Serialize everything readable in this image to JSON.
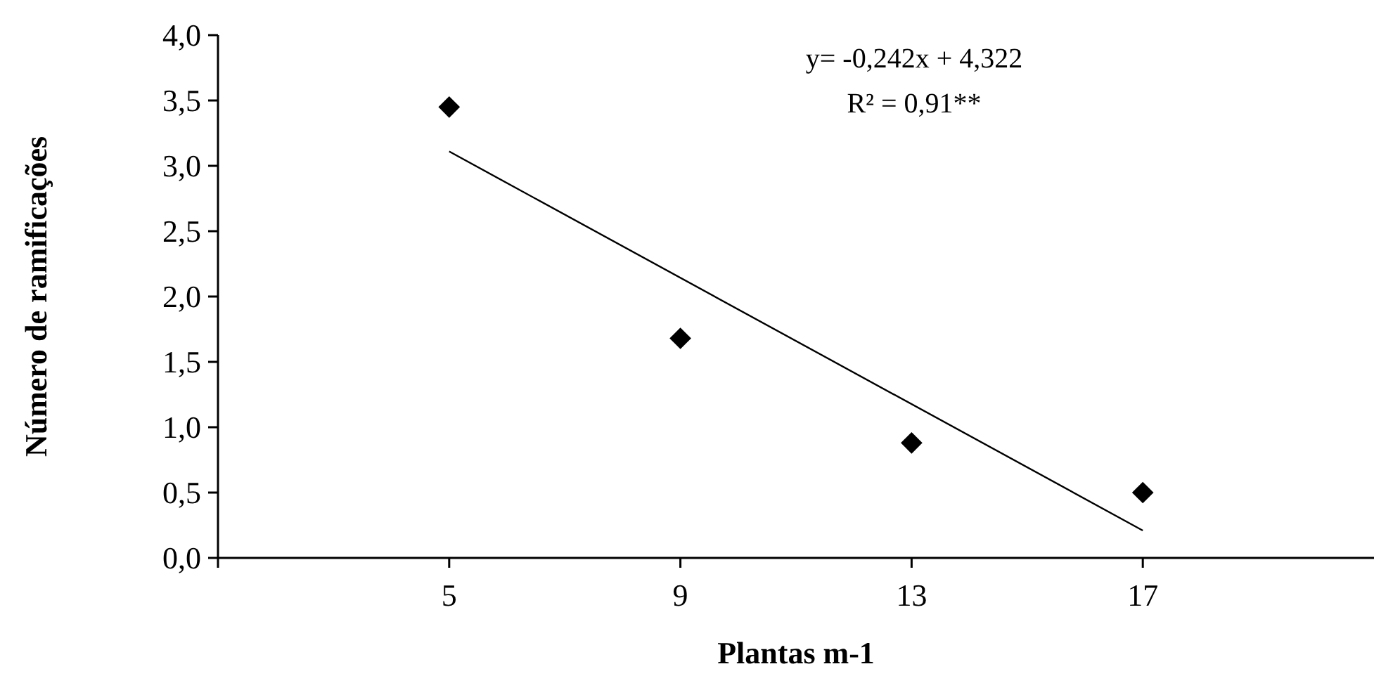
{
  "chart_data": {
    "type": "scatter",
    "xlabel": "Plantas m-1",
    "ylabel": "Número de ramificações",
    "series": [
      {
        "color": "#000000",
        "marker": "diamond",
        "x": [
          5,
          9,
          13,
          17
        ],
        "values": [
          3.45,
          1.68,
          0.88,
          0.5
        ]
      },
      {
        "type": "line",
        "color": "#000000",
        "marker": "none",
        "line_style": "solid",
        "x": [
          5,
          17
        ],
        "values": [
          3.11,
          0.21
        ]
      }
    ],
    "annotations": [
      "y= -0,242x + 4,322",
      "R² = 0,91**"
    ],
    "xlim": [
      1,
      21
    ],
    "xticks": [
      {
        "value": 1,
        "label": null
      },
      5,
      9,
      13,
      17
    ],
    "ylim": [
      0,
      4
    ],
    "yticks": [
      {
        "value": 0,
        "label": "0,0"
      },
      {
        "value": 0.5,
        "label": "0,5"
      },
      {
        "value": 1,
        "label": "1,0"
      },
      {
        "value": 1.5,
        "label": "1,5"
      },
      {
        "value": 2,
        "label": "2,0"
      },
      {
        "value": 2.5,
        "label": "2,5"
      },
      {
        "value": 3,
        "label": "3,0"
      },
      {
        "value": 3.5,
        "label": "3,5"
      },
      {
        "value": 4,
        "label": "4,0"
      }
    ],
    "grid": false
  }
}
